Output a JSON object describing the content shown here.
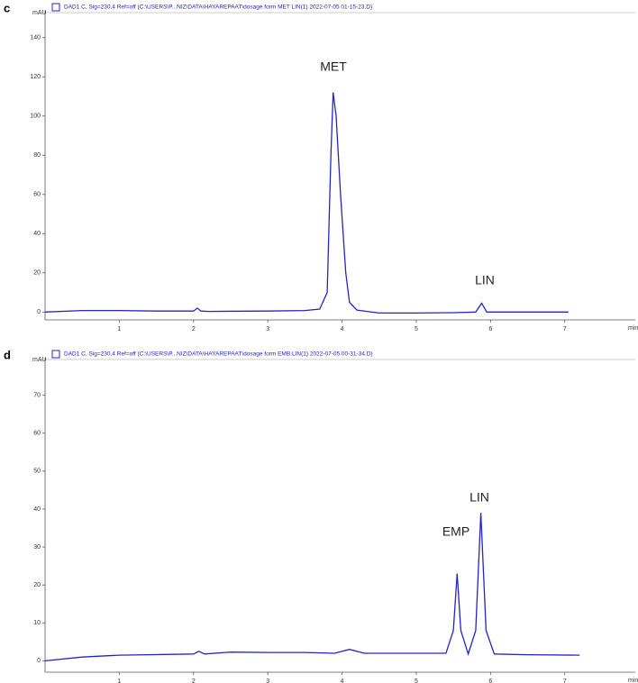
{
  "chart_data": [
    {
      "type": "line",
      "panel_label": "c",
      "legend": "top-left",
      "y_label": "mAU",
      "x_label": "min",
      "xlim": [
        0,
        7.95
      ],
      "xticks": [
        1,
        2,
        3,
        4,
        5,
        6,
        7
      ],
      "ylim": [
        -4,
        150
      ],
      "yticks": [
        0,
        20,
        40,
        60,
        80,
        100,
        120,
        140
      ],
      "annotations": [
        "MET",
        "LIN"
      ],
      "series": [
        {
          "name": "DAD1 C, Sig=230,4 Ref=off (C:\\USERS\\P...NIZ\\DATA\\HAYAREPAAT\\dosage form MET LIN(1) 2022-07-05 01-15-23.D)",
          "color": "#2424c8",
          "x": [
            0,
            0.5,
            1,
            1.5,
            2,
            2.05,
            2.1,
            2.2,
            3,
            3.5,
            3.7,
            3.8,
            3.85,
            3.88,
            3.92,
            3.98,
            4.05,
            4.1,
            4.2,
            4.5,
            5,
            5.5,
            5.8,
            5.88,
            5.95,
            6.1,
            6.5,
            7.05
          ],
          "values": [
            0,
            0.8,
            0.8,
            0.5,
            0.5,
            2,
            0.5,
            0.3,
            0.5,
            0.8,
            1.5,
            10,
            80,
            112,
            100,
            60,
            20,
            5,
            1,
            -0.5,
            -0.5,
            -0.3,
            0,
            4.5,
            0,
            0,
            0,
            0
          ]
        }
      ]
    },
    {
      "type": "line",
      "panel_label": "d",
      "legend": "top-left",
      "y_label": "mAU",
      "x_label": "min",
      "xlim": [
        0,
        7.95
      ],
      "xticks": [
        1,
        2,
        3,
        4,
        5,
        6,
        7
      ],
      "ylim": [
        -3,
        78
      ],
      "yticks": [
        0,
        10,
        20,
        30,
        40,
        50,
        60,
        70
      ],
      "annotations": [
        "EMP",
        "LIN"
      ],
      "series": [
        {
          "name": "DAD1 C, Sig=230,4 Ref=off (C:\\USERS\\P...NIZ\\DATA\\HAYAREPAAT\\dosage form EMB LIN(1) 2022-07-05 00-31-34.D)",
          "color": "#2424c8",
          "x": [
            0,
            0.5,
            1,
            2,
            2.07,
            2.15,
            2.5,
            3,
            3.5,
            3.9,
            4.1,
            4.3,
            5,
            5.4,
            5.5,
            5.55,
            5.6,
            5.7,
            5.8,
            5.87,
            5.94,
            6.05,
            6.5,
            7.2
          ],
          "values": [
            0,
            1,
            1.5,
            1.8,
            2.5,
            1.8,
            2.3,
            2.2,
            2.2,
            2,
            3,
            2,
            2,
            2,
            8,
            23,
            8,
            1.8,
            8,
            39,
            8,
            1.8,
            1.6,
            1.5
          ]
        }
      ]
    }
  ]
}
